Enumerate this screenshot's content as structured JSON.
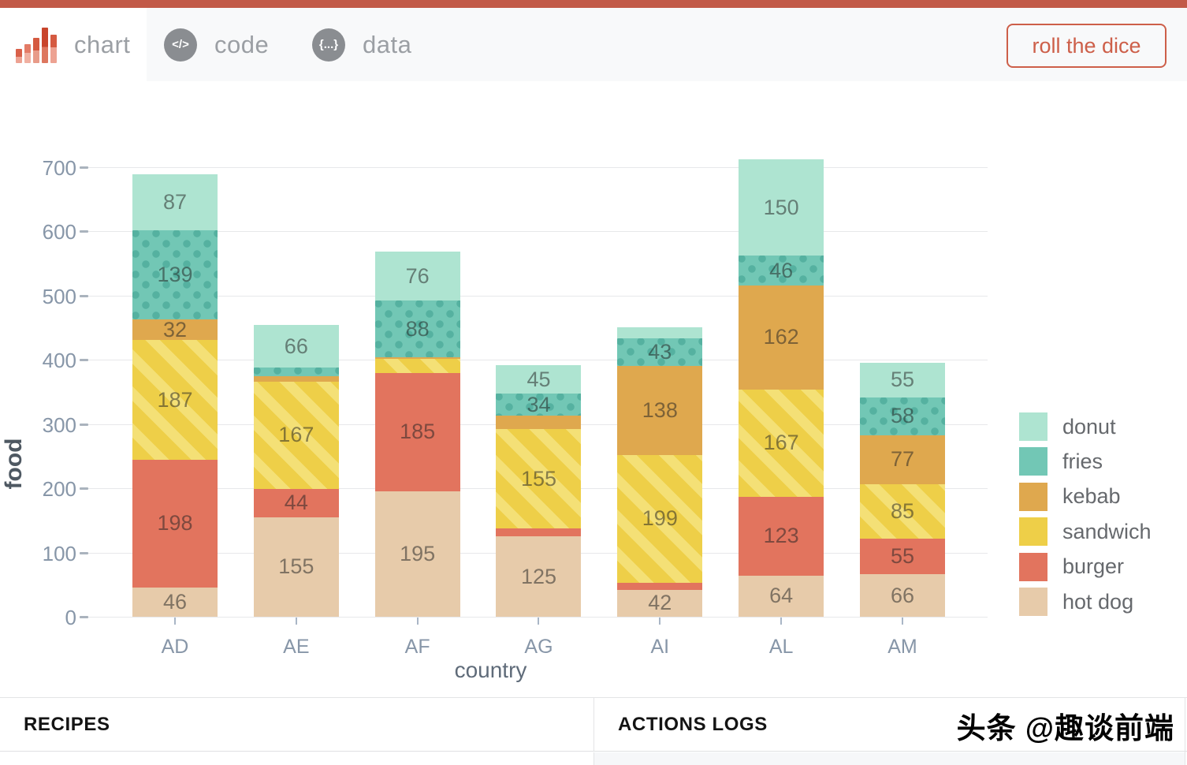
{
  "header": {
    "tabs": [
      {
        "label": "chart",
        "active": true
      },
      {
        "label": "code",
        "active": false,
        "icon_glyph": "</>"
      },
      {
        "label": "data",
        "active": false,
        "icon_glyph": "{...}"
      }
    ],
    "roll_button": "roll the dice"
  },
  "chart_data": {
    "type": "bar",
    "stacked": true,
    "title": "",
    "xlabel": "country",
    "ylabel": "food",
    "categories": [
      "AD",
      "AE",
      "AF",
      "AG",
      "AI",
      "AL",
      "AM"
    ],
    "series": [
      {
        "name": "hot dog",
        "color": "#e7cbaa",
        "pattern": "solid",
        "values": [
          46,
          155,
          195,
          125,
          42,
          64,
          66
        ]
      },
      {
        "name": "burger",
        "color": "#e2745e",
        "pattern": "solid",
        "values": [
          198,
          44,
          185,
          12,
          11,
          123,
          55
        ]
      },
      {
        "name": "sandwich",
        "color": "#eecf48",
        "pattern": "stripes",
        "pattern_color": "#f4e076",
        "values": [
          187,
          167,
          21,
          155,
          199,
          167,
          85
        ]
      },
      {
        "name": "kebab",
        "color": "#dfa84e",
        "pattern": "solid",
        "values": [
          32,
          8,
          3,
          21,
          138,
          162,
          77
        ]
      },
      {
        "name": "fries",
        "color": "#72c7b5",
        "pattern": "dots",
        "pattern_color": "#55b1a0",
        "values": [
          139,
          14,
          88,
          34,
          43,
          46,
          58
        ]
      },
      {
        "name": "donut",
        "color": "#aee4d1",
        "pattern": "solid",
        "values": [
          87,
          66,
          76,
          45,
          18,
          150,
          55
        ]
      }
    ],
    "ylim": [
      0,
      700
    ],
    "yticks": [
      0,
      100,
      200,
      300,
      400,
      500,
      600,
      700
    ],
    "grid": true,
    "legend_position": "right",
    "legend_order_top_to_bottom": [
      "donut",
      "fries",
      "kebab",
      "sandwich",
      "burger",
      "hot dog"
    ],
    "value_label_min": 30
  },
  "panels": {
    "left_title": "RECIPES",
    "right_title": "ACTIONS LOGS"
  },
  "watermark": "头条 @趣谈前端",
  "colors": {
    "top_strip": "#c25a48",
    "header_bg": "#f8f9fa",
    "accent": "#cd5f49",
    "grid_line": "#e7e8ea",
    "axis_text": "#8796a8",
    "axis_title": "#4e5862"
  }
}
